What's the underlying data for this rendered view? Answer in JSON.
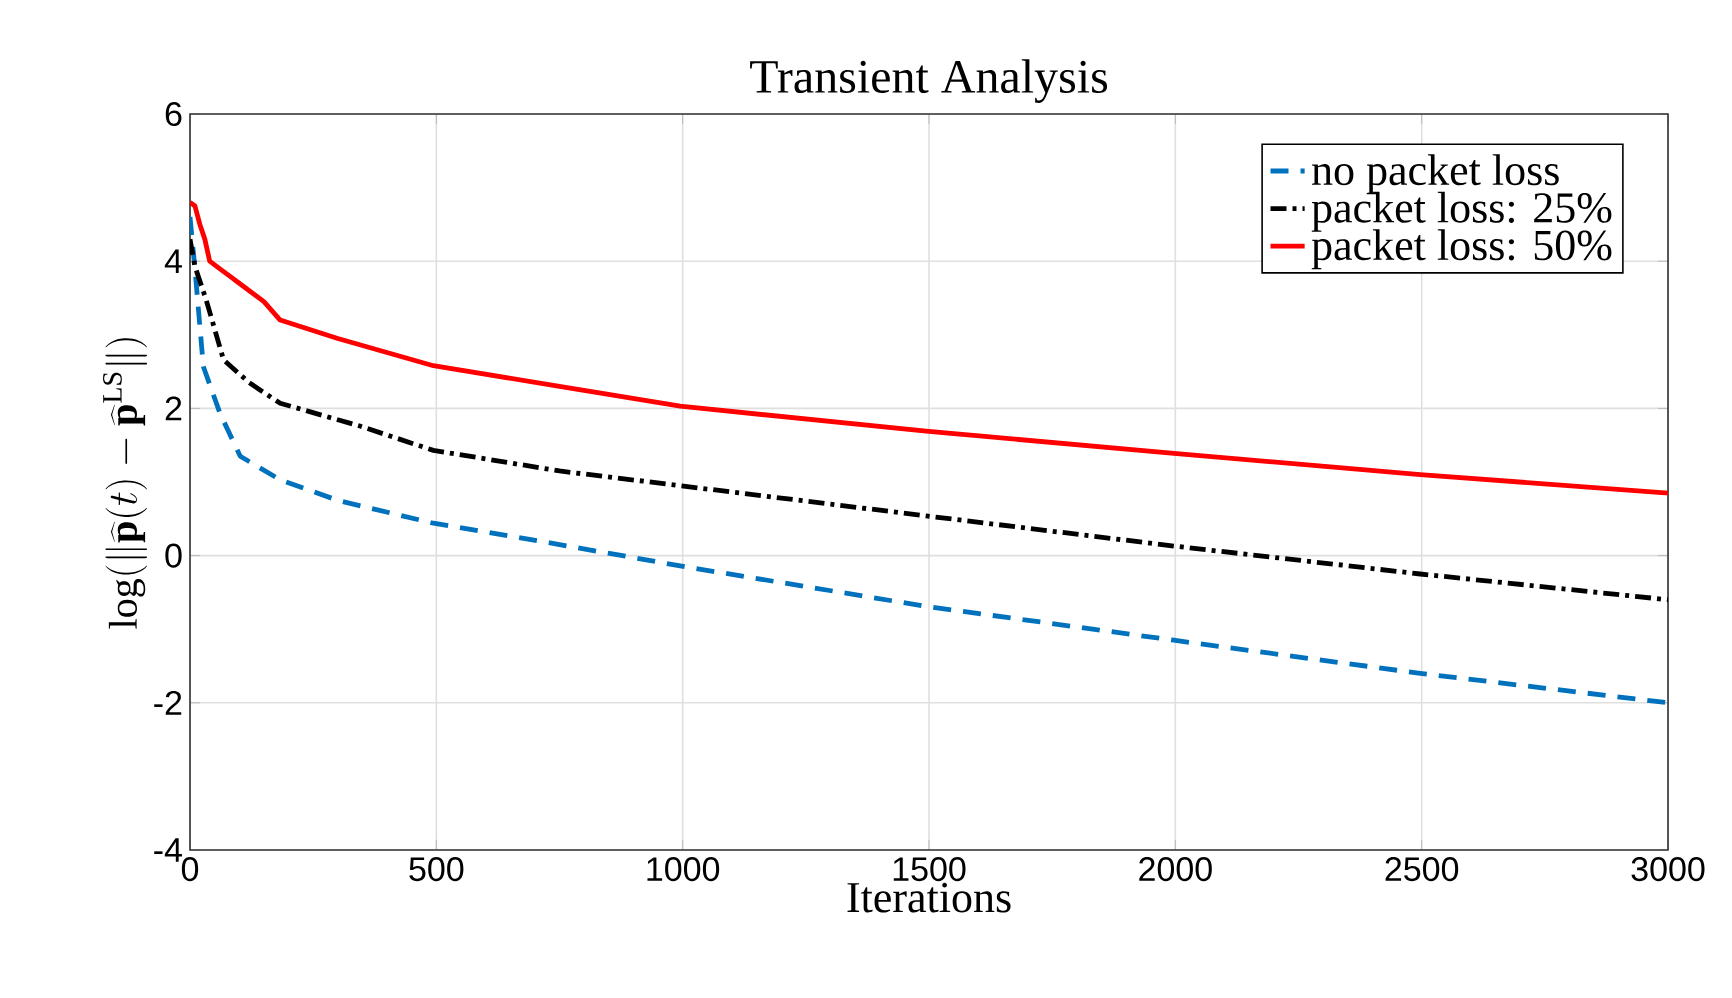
{
  "chart_data": {
    "type": "line",
    "title": "Transient Analysis",
    "xlabel": "Iterations",
    "ylabel": "\\log(\\|\\widehat{\\mathbf{p}}(t)-\\widehat{\\mathbf{p}}^{\\mathrm{LS}}\\|)",
    "xlim": [
      0,
      3000
    ],
    "ylim": [
      -4,
      6
    ],
    "xticks": [
      0,
      500,
      1000,
      1500,
      2000,
      2500,
      3000
    ],
    "yticks": [
      -4,
      -2,
      0,
      2,
      4,
      6
    ],
    "grid": true,
    "legend": "top right",
    "series": [
      {
        "name": "no packet loss",
        "color": "#0072bd",
        "line_style": "dashed",
        "x": [
          0,
          10,
          27,
          61,
          102,
          183,
          300,
          494,
          750,
          995,
          1494,
          1997,
          2497,
          3000
        ],
        "values": [
          4.6,
          3.9,
          2.57,
          1.93,
          1.35,
          1.03,
          0.75,
          0.44,
          0.15,
          -0.14,
          -0.69,
          -1.15,
          -1.6,
          -2.0
        ]
      },
      {
        "name": "packet loss: 25%",
        "color": "#000000",
        "line_style": "dashdot",
        "x": [
          0,
          10,
          33,
          68,
          120,
          183,
          345,
          494,
          750,
          995,
          1494,
          1997,
          2497,
          3000
        ],
        "values": [
          4.3,
          3.93,
          3.47,
          2.66,
          2.35,
          2.07,
          1.76,
          1.43,
          1.15,
          0.95,
          0.54,
          0.13,
          -0.25,
          -0.6
        ]
      },
      {
        "name": "packet loss: 50%",
        "color": "#ff0000",
        "line_style": "solid",
        "x": [
          0,
          10,
          20,
          30,
          40,
          60,
          80,
          100,
          150,
          183,
          300,
          494,
          750,
          995,
          1494,
          1997,
          2497,
          3000
        ],
        "values": [
          4.8,
          4.75,
          4.5,
          4.3,
          4.0,
          3.9,
          3.8,
          3.7,
          3.45,
          3.2,
          2.95,
          2.58,
          2.3,
          2.03,
          1.69,
          1.39,
          1.1,
          0.85
        ]
      }
    ]
  }
}
